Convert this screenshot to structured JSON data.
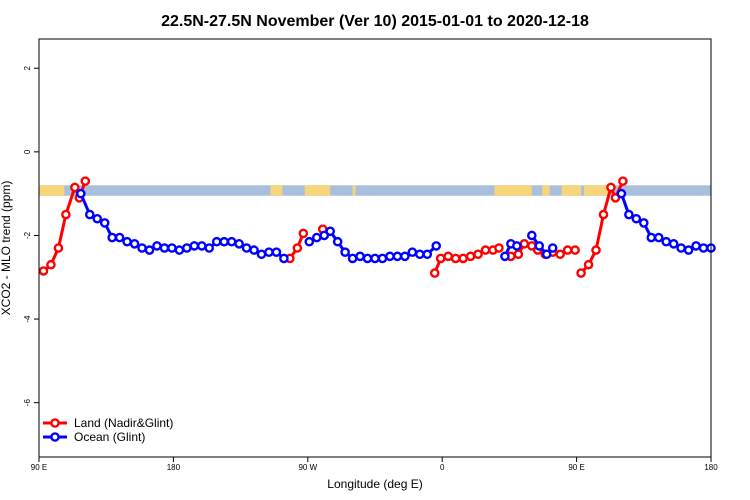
{
  "chart_data": {
    "type": "line",
    "title": "22.5N-27.5N November (Ver 10)   2015-01-01 to 2020-12-18",
    "xlabel": "Longitude (deg E)",
    "ylabel": "XCO2 - MLO trend (ppm)",
    "xlim": [
      90,
      540
    ],
    "ylim": [
      -7.3,
      2.7
    ],
    "x_ticks": [
      90,
      180,
      270,
      360,
      450,
      540
    ],
    "x_tick_labels": [
      "90 E",
      "180",
      "90 W",
      "0",
      "90 E",
      "180"
    ],
    "y_ticks": [
      2,
      0,
      -2,
      -4,
      -6
    ],
    "y_tick_labels": [
      "2",
      "0",
      "-2",
      "-4",
      "-6"
    ],
    "grid": false,
    "legend_position": "bottom-left",
    "land_mask_band": {
      "y_range": [
        -1.05,
        -0.8
      ],
      "ocean_color": "#a9bfdd",
      "land_color": "#f5d67a",
      "land_x_ranges": [
        [
          90,
          107
        ],
        [
          245,
          253
        ],
        [
          268,
          285
        ],
        [
          300,
          302
        ],
        [
          395,
          420
        ],
        [
          427,
          432
        ],
        [
          440,
          453
        ],
        [
          455,
          475
        ]
      ]
    },
    "series": [
      {
        "name": "Land (Nadir&Glint)",
        "color": "#ff0000",
        "segments": [
          [
            [
              93,
              -2.85
            ],
            [
              98,
              -2.7
            ],
            [
              103,
              -2.3
            ],
            [
              108,
              -1.5
            ],
            [
              114,
              -0.85
            ],
            [
              117,
              -1.1
            ],
            [
              121,
              -0.7
            ]
          ],
          [
            [
              258,
              -2.55
            ],
            [
              263,
              -2.3
            ],
            [
              267,
              -1.95
            ]
          ],
          [
            [
              280,
              -1.85
            ]
          ],
          [
            [
              355,
              -2.9
            ],
            [
              359,
              -2.55
            ],
            [
              364,
              -2.5
            ],
            [
              369,
              -2.55
            ],
            [
              374,
              -2.55
            ],
            [
              379,
              -2.5
            ],
            [
              384,
              -2.45
            ],
            [
              389,
              -2.35
            ],
            [
              394,
              -2.35
            ],
            [
              398,
              -2.3
            ]
          ],
          [
            [
              406,
              -2.5
            ],
            [
              411,
              -2.45
            ],
            [
              415,
              -2.2
            ],
            [
              420,
              -2.25
            ],
            [
              424,
              -2.35
            ],
            [
              429,
              -2.45
            ],
            [
              434,
              -2.4
            ],
            [
              439,
              -2.45
            ],
            [
              444,
              -2.35
            ],
            [
              449,
              -2.35
            ]
          ],
          [
            [
              453,
              -2.9
            ],
            [
              458,
              -2.7
            ],
            [
              463,
              -2.35
            ],
            [
              468,
              -1.5
            ],
            [
              473,
              -0.85
            ],
            [
              476,
              -1.1
            ],
            [
              481,
              -0.7
            ]
          ]
        ]
      },
      {
        "name": "Ocean (Glint)",
        "color": "#0000ff",
        "segments": [
          [
            [
              118,
              -1.0
            ],
            [
              124,
              -1.5
            ],
            [
              129,
              -1.6
            ],
            [
              134,
              -1.7
            ],
            [
              139,
              -2.05
            ],
            [
              144,
              -2.05
            ],
            [
              149,
              -2.15
            ],
            [
              154,
              -2.2
            ],
            [
              159,
              -2.3
            ],
            [
              164,
              -2.35
            ],
            [
              169,
              -2.25
            ],
            [
              174,
              -2.3
            ],
            [
              179,
              -2.3
            ],
            [
              184,
              -2.35
            ],
            [
              189,
              -2.3
            ],
            [
              194,
              -2.25
            ],
            [
              199,
              -2.25
            ],
            [
              204,
              -2.3
            ],
            [
              209,
              -2.15
            ],
            [
              214,
              -2.15
            ],
            [
              219,
              -2.15
            ],
            [
              224,
              -2.2
            ],
            [
              229,
              -2.3
            ],
            [
              234,
              -2.35
            ],
            [
              239,
              -2.45
            ],
            [
              244,
              -2.4
            ],
            [
              249,
              -2.4
            ],
            [
              254,
              -2.55
            ]
          ],
          [
            [
              271,
              -2.15
            ],
            [
              276,
              -2.05
            ],
            [
              281,
              -2.0
            ],
            [
              285,
              -1.9
            ],
            [
              290,
              -2.15
            ],
            [
              295,
              -2.4
            ],
            [
              300,
              -2.55
            ],
            [
              305,
              -2.5
            ],
            [
              310,
              -2.55
            ],
            [
              315,
              -2.55
            ],
            [
              320,
              -2.55
            ],
            [
              325,
              -2.5
            ],
            [
              330,
              -2.5
            ],
            [
              335,
              -2.5
            ],
            [
              340,
              -2.4
            ],
            [
              345,
              -2.45
            ],
            [
              350,
              -2.45
            ],
            [
              356,
              -2.25
            ]
          ],
          [
            [
              402,
              -2.5
            ],
            [
              406,
              -2.2
            ]
          ],
          [
            [
              410,
              -2.25
            ]
          ],
          [
            [
              420,
              -2.0
            ],
            [
              425,
              -2.25
            ],
            [
              430,
              -2.45
            ],
            [
              434,
              -2.3
            ]
          ],
          [
            [
              480,
              -1.0
            ],
            [
              485,
              -1.5
            ],
            [
              490,
              -1.6
            ],
            [
              495,
              -1.7
            ],
            [
              500,
              -2.05
            ],
            [
              505,
              -2.05
            ],
            [
              510,
              -2.15
            ],
            [
              515,
              -2.2
            ],
            [
              520,
              -2.3
            ],
            [
              525,
              -2.35
            ],
            [
              530,
              -2.25
            ],
            [
              535,
              -2.3
            ],
            [
              540,
              -2.3
            ]
          ]
        ]
      }
    ]
  }
}
